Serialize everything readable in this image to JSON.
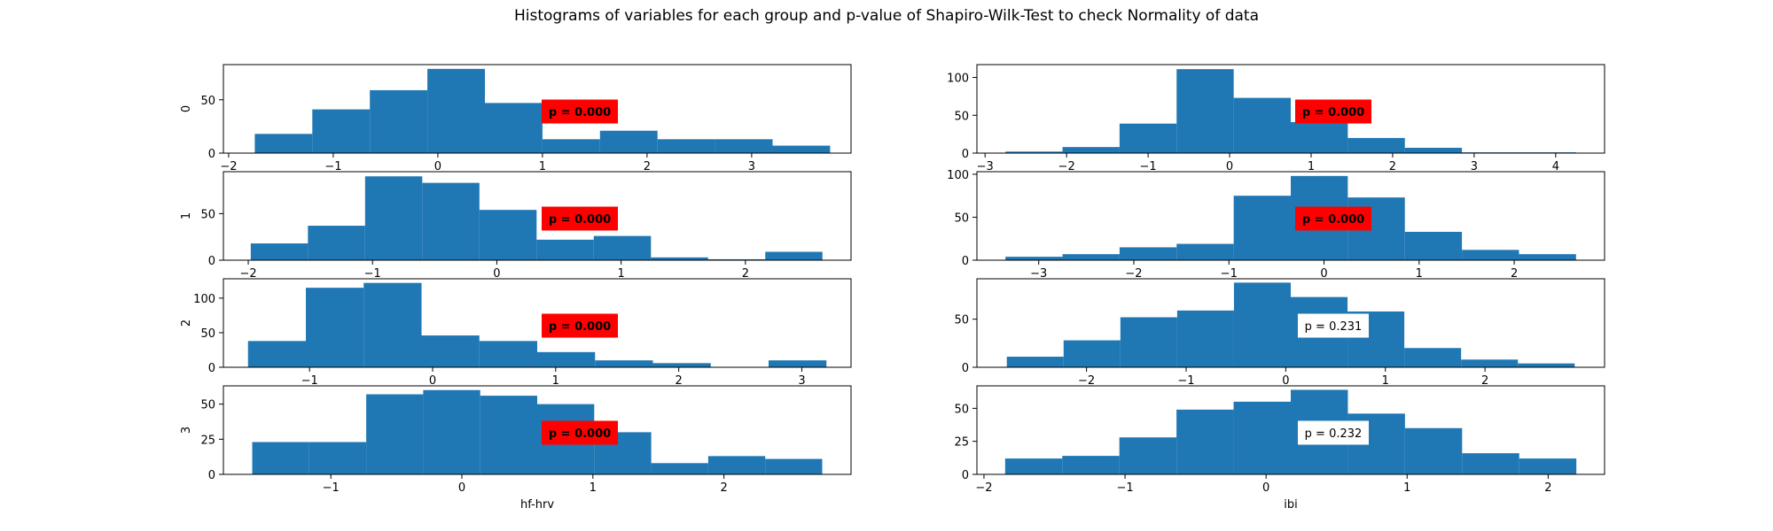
{
  "figure": {
    "title": "Histograms of variables for each group and p-value of Shapiro-Wilk-Test to check Normality of data",
    "bar_color": "#1f77b4",
    "significant_box_color": "#ff0000",
    "nonsignificant_box_color": "#ffffff"
  },
  "chart_data": [
    {
      "type": "bar",
      "variable": "hf-hrv",
      "group": "0",
      "ylabel": "0",
      "xlabel": "",
      "bin_edges": [
        -1.75,
        -1.2,
        -0.65,
        -0.1,
        0.45,
        1.0,
        1.55,
        2.1,
        2.65,
        3.2,
        3.75
      ],
      "values": [
        18,
        41,
        59,
        79,
        47,
        13,
        21,
        13,
        13,
        7
      ],
      "xlim": [
        -2.05,
        3.95
      ],
      "ylim": [
        0,
        83
      ],
      "xticks": [
        -2,
        -1,
        0,
        1,
        2,
        3
      ],
      "yticks": [
        0,
        50
      ],
      "annotation": "p = 0.000",
      "significant": true
    },
    {
      "type": "bar",
      "variable": "ibi",
      "group": "0",
      "ylabel": "",
      "xlabel": "",
      "bin_edges": [
        -2.75,
        -2.05,
        -1.35,
        -0.65,
        0.05,
        0.75,
        1.45,
        2.15,
        2.85,
        3.55,
        4.25
      ],
      "values": [
        2,
        8,
        39,
        111,
        73,
        41,
        20,
        7,
        1,
        1
      ],
      "xlim": [
        -3.1,
        4.6
      ],
      "ylim": [
        0,
        117
      ],
      "xticks": [
        -3,
        -2,
        -1,
        0,
        1,
        2,
        3,
        4
      ],
      "yticks": [
        0,
        50,
        100
      ],
      "annotation": "p = 0.000",
      "significant": true
    },
    {
      "type": "bar",
      "variable": "hf-hrv",
      "group": "1",
      "ylabel": "1",
      "xlabel": "",
      "bin_edges": [
        -1.98,
        -1.52,
        -1.06,
        -0.6,
        -0.14,
        0.32,
        0.78,
        1.24,
        1.7,
        2.16,
        2.62
      ],
      "values": [
        18,
        37,
        90,
        83,
        54,
        22,
        26,
        3,
        1,
        9
      ],
      "xlim": [
        -2.2,
        2.85
      ],
      "ylim": [
        0,
        95
      ],
      "xticks": [
        -2,
        -1,
        0,
        1,
        2
      ],
      "yticks": [
        0,
        50
      ],
      "annotation": "p = 0.000",
      "significant": true
    },
    {
      "type": "bar",
      "variable": "ibi",
      "group": "1",
      "ylabel": "",
      "xlabel": "",
      "bin_edges": [
        -3.35,
        -2.75,
        -2.15,
        -1.55,
        -0.95,
        -0.35,
        0.25,
        0.85,
        1.45,
        2.05,
        2.65
      ],
      "values": [
        4,
        7,
        15,
        19,
        75,
        98,
        73,
        33,
        12,
        7
      ],
      "xlim": [
        -3.65,
        2.95
      ],
      "ylim": [
        0,
        103
      ],
      "xticks": [
        -3,
        -2,
        -1,
        0,
        1,
        2
      ],
      "yticks": [
        0,
        50,
        100
      ],
      "annotation": "p = 0.000",
      "significant": true
    },
    {
      "type": "bar",
      "variable": "hf-hrv",
      "group": "2",
      "ylabel": "2",
      "xlabel": "",
      "bin_edges": [
        -1.5,
        -1.03,
        -0.56,
        -0.09,
        0.38,
        0.85,
        1.32,
        1.79,
        2.26,
        2.73,
        3.2
      ],
      "values": [
        38,
        115,
        122,
        46,
        38,
        22,
        10,
        6,
        0,
        10
      ],
      "xlim": [
        -1.7,
        3.4
      ],
      "ylim": [
        0,
        128
      ],
      "xticks": [
        -1,
        0,
        1,
        2,
        3
      ],
      "yticks": [
        0,
        50,
        100
      ],
      "annotation": "p = 0.000",
      "significant": true
    },
    {
      "type": "bar",
      "variable": "ibi",
      "group": "2",
      "ylabel": "",
      "xlabel": "",
      "bin_edges": [
        -2.8,
        -2.23,
        -1.66,
        -1.09,
        -0.52,
        0.05,
        0.62,
        1.19,
        1.76,
        2.33,
        2.9
      ],
      "values": [
        11,
        28,
        52,
        59,
        88,
        73,
        58,
        20,
        8,
        4
      ],
      "xlim": [
        -3.1,
        3.2
      ],
      "ylim": [
        0,
        92
      ],
      "xticks": [
        -2,
        -1,
        0,
        1,
        2
      ],
      "yticks": [
        0,
        50
      ],
      "annotation": "p = 0.231",
      "significant": false
    },
    {
      "type": "bar",
      "variable": "hf-hrv",
      "group": "3",
      "ylabel": "3",
      "xlabel": "hf-hrv",
      "bin_edges": [
        -1.6,
        -1.165,
        -0.73,
        -0.295,
        0.14,
        0.575,
        1.01,
        1.445,
        1.88,
        2.315,
        2.75
      ],
      "values": [
        23,
        23,
        57,
        60,
        56,
        50,
        30,
        8,
        13,
        11
      ],
      "xlim": [
        -1.82,
        2.97
      ],
      "ylim": [
        0,
        63
      ],
      "xticks": [
        -1,
        0,
        1,
        2
      ],
      "yticks": [
        0,
        25,
        50
      ],
      "annotation": "p = 0.000",
      "significant": true
    },
    {
      "type": "bar",
      "variable": "ibi",
      "group": "3",
      "ylabel": "",
      "xlabel": "ibi",
      "bin_edges": [
        -1.85,
        -1.445,
        -1.04,
        -0.635,
        -0.23,
        0.175,
        0.58,
        0.985,
        1.39,
        1.795,
        2.2
      ],
      "values": [
        12,
        14,
        28,
        49,
        55,
        64,
        46,
        35,
        16,
        12
      ],
      "xlim": [
        -2.05,
        2.4
      ],
      "ylim": [
        0,
        67
      ],
      "xticks": [
        -2,
        -1,
        0,
        1,
        2
      ],
      "yticks": [
        0,
        25,
        50
      ],
      "annotation": "p = 0.232",
      "significant": false
    }
  ]
}
